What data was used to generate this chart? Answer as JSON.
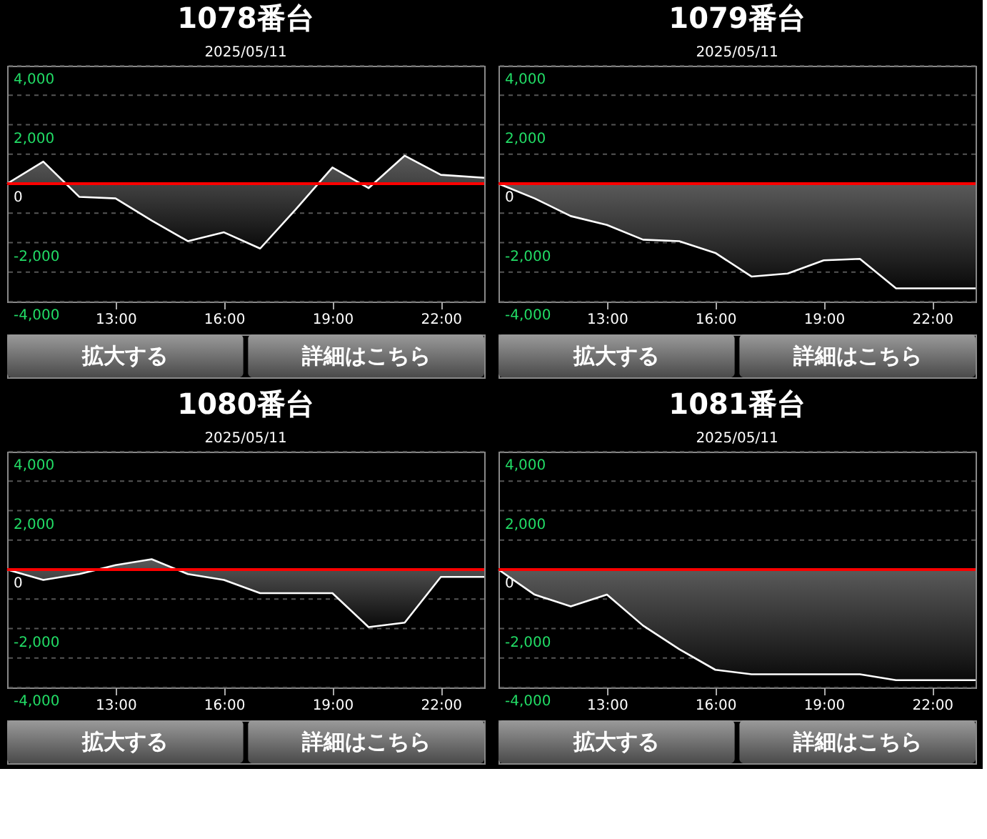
{
  "chart_data": [
    {
      "type": "area",
      "title": "1078番台",
      "subtitle": "2025/05/11",
      "x": [
        10,
        11,
        12,
        13,
        14,
        15,
        16,
        17,
        18,
        19,
        20,
        21,
        22,
        23.2
      ],
      "values": [
        0,
        750,
        -450,
        -500,
        -1250,
        -1950,
        -1650,
        -2200,
        -850,
        550,
        -150,
        950,
        300,
        200
      ],
      "color": "#ffffff",
      "xlim": [
        10,
        23.2
      ],
      "ylim": [
        -4000,
        4000
      ],
      "xticks": [
        {
          "value": 13,
          "label": "13:00"
        },
        {
          "value": 16,
          "label": "16:00"
        },
        {
          "value": 19,
          "label": "19:00"
        },
        {
          "value": 22,
          "label": "22:00"
        }
      ],
      "yticks": [
        {
          "value": 4000,
          "label": "4,000"
        },
        {
          "value": 3000,
          "label": null
        },
        {
          "value": 2000,
          "label": "2,000"
        },
        {
          "value": 1000,
          "label": null
        },
        0,
        {
          "value": -1000,
          "label": null
        },
        {
          "value": -2000,
          "label": "-2,000"
        },
        {
          "value": -3000,
          "label": null
        },
        {
          "value": -4000,
          "label": "-4,000"
        }
      ],
      "grid": "y",
      "ref_lines": [
        {
          "axis": "y",
          "value": 0,
          "color": "#ff0000"
        }
      ],
      "annotations": [
        "拡大する",
        "詳細はこちら"
      ]
    },
    {
      "type": "area",
      "title": "1079番台",
      "subtitle": "2025/05/11",
      "x": [
        10,
        11,
        12,
        13,
        14,
        15,
        16,
        17,
        18,
        19,
        20,
        21,
        22,
        23.2
      ],
      "values": [
        0,
        -500,
        -1100,
        -1400,
        -1900,
        -1950,
        -2350,
        -3150,
        -3050,
        -2600,
        -2550,
        -3550,
        -3550,
        -3550
      ],
      "color": "#ffffff",
      "xlim": [
        10,
        23.2
      ],
      "ylim": [
        -4000,
        4000
      ],
      "xticks": [
        {
          "value": 13,
          "label": "13:00"
        },
        {
          "value": 16,
          "label": "16:00"
        },
        {
          "value": 19,
          "label": "19:00"
        },
        {
          "value": 22,
          "label": "22:00"
        }
      ],
      "yticks": [
        {
          "value": 4000,
          "label": "4,000"
        },
        {
          "value": 3000,
          "label": null
        },
        {
          "value": 2000,
          "label": "2,000"
        },
        {
          "value": 1000,
          "label": null
        },
        0,
        {
          "value": -1000,
          "label": null
        },
        {
          "value": -2000,
          "label": "-2,000"
        },
        {
          "value": -3000,
          "label": null
        },
        {
          "value": -4000,
          "label": "-4,000"
        }
      ],
      "grid": "y",
      "ref_lines": [
        {
          "axis": "y",
          "value": 0,
          "color": "#ff0000"
        }
      ],
      "annotations": [
        "拡大する",
        "詳細はこちら"
      ]
    },
    {
      "type": "area",
      "title": "1080番台",
      "subtitle": "2025/05/11",
      "x": [
        10,
        11,
        12,
        13,
        14,
        15,
        16,
        17,
        18,
        19,
        20,
        21,
        22,
        23.2
      ],
      "values": [
        0,
        -350,
        -150,
        150,
        350,
        -150,
        -350,
        -800,
        -800,
        -800,
        -1950,
        -1800,
        -250,
        -250
      ],
      "color": "#ffffff",
      "xlim": [
        10,
        23.2
      ],
      "ylim": [
        -4000,
        4000
      ],
      "xticks": [
        {
          "value": 13,
          "label": "13:00"
        },
        {
          "value": 16,
          "label": "16:00"
        },
        {
          "value": 19,
          "label": "19:00"
        },
        {
          "value": 22,
          "label": "22:00"
        }
      ],
      "yticks": [
        {
          "value": 4000,
          "label": "4,000"
        },
        {
          "value": 3000,
          "label": null
        },
        {
          "value": 2000,
          "label": "2,000"
        },
        {
          "value": 1000,
          "label": null
        },
        0,
        {
          "value": -1000,
          "label": null
        },
        {
          "value": -2000,
          "label": "-2,000"
        },
        {
          "value": -3000,
          "label": null
        },
        {
          "value": -4000,
          "label": "-4,000"
        }
      ],
      "grid": "y",
      "ref_lines": [
        {
          "axis": "y",
          "value": 0,
          "color": "#ff0000"
        }
      ],
      "annotations": [
        "拡大する",
        "詳細はこちら"
      ]
    },
    {
      "type": "area",
      "title": "1081番台",
      "subtitle": "2025/05/11",
      "x": [
        10,
        11,
        12,
        13,
        14,
        15,
        16,
        17,
        18,
        19,
        20,
        21,
        22,
        23.2
      ],
      "values": [
        0,
        -850,
        -1250,
        -850,
        -1900,
        -2700,
        -3400,
        -3550,
        -3550,
        -3550,
        -3550,
        -3750,
        -3750,
        -3750
      ],
      "color": "#ffffff",
      "xlim": [
        10,
        23.2
      ],
      "ylim": [
        -4000,
        4000
      ],
      "xticks": [
        {
          "value": 13,
          "label": "13:00"
        },
        {
          "value": 16,
          "label": "16:00"
        },
        {
          "value": 19,
          "label": "19:00"
        },
        {
          "value": 22,
          "label": "22:00"
        }
      ],
      "yticks": [
        {
          "value": 4000,
          "label": "4,000"
        },
        {
          "value": 3000,
          "label": null
        },
        {
          "value": 2000,
          "label": "2,000"
        },
        {
          "value": 1000,
          "label": null
        },
        0,
        {
          "value": -1000,
          "label": null
        },
        {
          "value": -2000,
          "label": "-2,000"
        },
        {
          "value": -3000,
          "label": null
        },
        {
          "value": -4000,
          "label": "-4,000"
        }
      ],
      "grid": "y",
      "ref_lines": [
        {
          "axis": "y",
          "value": 0,
          "color": "#ff0000"
        }
      ],
      "annotations": [
        "拡大する",
        "詳細はこちら"
      ]
    }
  ]
}
